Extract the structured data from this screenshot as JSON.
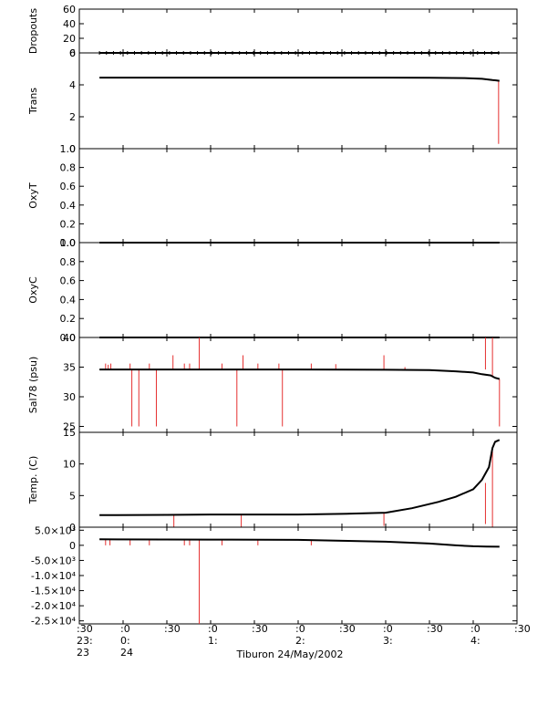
{
  "footer_label": "Tiburon 24/May/2002",
  "time_axis": {
    "min_hours": -0.5,
    "max_hours": 4.5,
    "tick_hours": [
      -0.5,
      0,
      0.5,
      1,
      1.5,
      2,
      2.5,
      3,
      3.5,
      4,
      4.5
    ],
    "row1": [
      ":30",
      ":0",
      ":30",
      ":0",
      ":30",
      ":0",
      ":30",
      ":0",
      ":30",
      ":0",
      ":30"
    ],
    "row2": [
      "23:",
      "0:",
      "",
      "1:",
      "",
      "2:",
      "",
      "3:",
      "",
      "4:",
      ""
    ],
    "row3": [
      "23",
      "24",
      "",
      "",
      "",
      "",
      "",
      "",
      "",
      "",
      ""
    ]
  },
  "chart_data": [
    {
      "type": "line",
      "ylabel": "Dropouts",
      "ylim": [
        0,
        60
      ],
      "yticks": [
        "0",
        "20",
        "40",
        "60"
      ],
      "tick_values": [
        0,
        20,
        40,
        60
      ],
      "series": [
        {
          "color": "#000000",
          "x_hours": [
            -0.27,
            4.3
          ],
          "y": [
            0,
            0
          ]
        }
      ],
      "spikes": []
    },
    {
      "type": "line",
      "ylabel": "Trans",
      "ylim": [
        0,
        6
      ],
      "yticks": [
        "0",
        "2",
        "4",
        "6"
      ],
      "tick_values": [
        0,
        2,
        4,
        6
      ],
      "series": [
        {
          "color": "#000000",
          "x_hours": [
            -0.27,
            0.5,
            1.5,
            2.5,
            3.0,
            3.5,
            3.9,
            4.1,
            4.22,
            4.26,
            4.3
          ],
          "y": [
            4.45,
            4.45,
            4.45,
            4.45,
            4.45,
            4.44,
            4.42,
            4.38,
            4.3,
            4.28,
            4.25
          ]
        }
      ],
      "spikes": [
        {
          "x": 4.29,
          "from": 4.2,
          "to": 0.3
        }
      ]
    },
    {
      "type": "line",
      "ylabel": "OxyT",
      "ylim": [
        0,
        1.0
      ],
      "yticks": [
        "0.0",
        "0.2",
        "0.4",
        "0.6",
        "0.8",
        "1.0"
      ],
      "tick_values": [
        0,
        0.2,
        0.4,
        0.6,
        0.8,
        1.0
      ],
      "series": [],
      "spikes": []
    },
    {
      "type": "line",
      "ylabel": "OxyC",
      "ylim": [
        0,
        1.0
      ],
      "yticks": [
        "0.0",
        "0.2",
        "0.4",
        "0.6",
        "0.8",
        "1.0"
      ],
      "tick_values": [
        0,
        0.2,
        0.4,
        0.6,
        0.8,
        1.0
      ],
      "series": [
        {
          "color": "#000000",
          "x_hours": [
            -0.27,
            4.3
          ],
          "y": [
            1.0,
            1.0
          ]
        },
        {
          "color": "#000000",
          "x_hours": [
            -0.27,
            4.3
          ],
          "y": [
            0.0,
            0.0
          ]
        }
      ],
      "spikes": []
    },
    {
      "type": "line",
      "ylabel": "Sal78 (psu)",
      "ylim": [
        24,
        40
      ],
      "yticks": [
        "25",
        "30",
        "35",
        "40"
      ],
      "tick_values": [
        25,
        30,
        35,
        40
      ],
      "series": [
        {
          "color": "#000000",
          "x_hours": [
            -0.27,
            1.0,
            2.0,
            3.0,
            3.5,
            3.8,
            4.0,
            4.1,
            4.2,
            4.25,
            4.3
          ],
          "y": [
            34.6,
            34.6,
            34.6,
            34.55,
            34.5,
            34.3,
            34.1,
            33.8,
            33.6,
            33.2,
            33.0
          ]
        }
      ],
      "spikes": [
        {
          "x": -0.2,
          "from": 34.6,
          "to": 35.6
        },
        {
          "x": -0.17,
          "from": 34.6,
          "to": 35.4
        },
        {
          "x": -0.14,
          "from": 34.6,
          "to": 35.6
        },
        {
          "x": 0.08,
          "from": 34.6,
          "to": 35.6
        },
        {
          "x": 0.1,
          "from": 34.6,
          "to": 25.0
        },
        {
          "x": 0.18,
          "from": 34.6,
          "to": 25.0
        },
        {
          "x": 0.3,
          "from": 34.6,
          "to": 35.6
        },
        {
          "x": 0.38,
          "from": 34.6,
          "to": 25.0
        },
        {
          "x": 0.57,
          "from": 34.6,
          "to": 37.0
        },
        {
          "x": 0.7,
          "from": 34.6,
          "to": 35.6
        },
        {
          "x": 0.76,
          "from": 34.6,
          "to": 35.6
        },
        {
          "x": 0.87,
          "from": 34.6,
          "to": 40.0
        },
        {
          "x": 1.13,
          "from": 34.6,
          "to": 35.6
        },
        {
          "x": 1.3,
          "from": 34.6,
          "to": 25.0
        },
        {
          "x": 1.37,
          "from": 34.6,
          "to": 37.0
        },
        {
          "x": 1.54,
          "from": 34.6,
          "to": 35.6
        },
        {
          "x": 1.78,
          "from": 34.6,
          "to": 35.6
        },
        {
          "x": 1.82,
          "from": 34.6,
          "to": 25.0
        },
        {
          "x": 2.15,
          "from": 34.6,
          "to": 35.6
        },
        {
          "x": 2.43,
          "from": 34.6,
          "to": 35.5
        },
        {
          "x": 2.98,
          "from": 34.6,
          "to": 37.0
        },
        {
          "x": 3.22,
          "from": 34.6,
          "to": 35.0
        },
        {
          "x": 4.14,
          "from": 34.6,
          "to": 40.0
        },
        {
          "x": 4.22,
          "from": 33.5,
          "to": 40.0
        },
        {
          "x": 4.3,
          "from": 33.0,
          "to": 25.0
        }
      ]
    },
    {
      "type": "line",
      "ylabel": "Temp. (C)",
      "ylim": [
        0,
        15
      ],
      "yticks": [
        "0",
        "5",
        "10",
        "15"
      ],
      "tick_values": [
        0,
        5,
        10,
        15
      ],
      "series": [
        {
          "color": "#000000",
          "x_hours": [
            -0.27,
            0.5,
            1.0,
            1.5,
            2.0,
            2.5,
            3.0,
            3.3,
            3.6,
            3.8,
            4.0,
            4.1,
            4.18,
            4.22,
            4.25,
            4.3
          ],
          "y": [
            1.9,
            1.95,
            2.0,
            2.0,
            2.0,
            2.1,
            2.3,
            3.0,
            4.0,
            4.8,
            6.0,
            7.5,
            9.5,
            12.5,
            13.5,
            13.8
          ]
        }
      ],
      "spikes": [
        {
          "x": 0.58,
          "from": 2.0,
          "to": 0.0
        },
        {
          "x": 1.35,
          "from": 2.0,
          "to": 0.0
        },
        {
          "x": 2.98,
          "from": 2.3,
          "to": 0.2
        },
        {
          "x": 4.14,
          "from": 7.0,
          "to": 0.5
        },
        {
          "x": 4.22,
          "from": 12.0,
          "to": 0.0
        }
      ]
    },
    {
      "type": "line",
      "ylabel": "",
      "ylim": [
        -26000,
        6000
      ],
      "yticks": [
        "5.0×10³",
        "0",
        "-5.0×10³",
        "-1.0×10⁴",
        "-1.5×10⁴",
        "-2.0×10⁴",
        "-2.5×10⁴"
      ],
      "tick_values": [
        5000,
        0,
        -5000,
        -10000,
        -15000,
        -20000,
        -25000
      ],
      "series": [
        {
          "color": "#000000",
          "x_hours": [
            -0.27,
            1.0,
            2.0,
            2.5,
            3.0,
            3.5,
            3.8,
            4.0,
            4.15,
            4.3
          ],
          "y": [
            2000,
            1900,
            1800,
            1500,
            1200,
            600,
            0,
            -300,
            -400,
            -450
          ]
        }
      ],
      "spikes": [
        {
          "x": -0.2,
          "from": 1900,
          "to": 0
        },
        {
          "x": -0.15,
          "from": 1900,
          "to": 0
        },
        {
          "x": 0.08,
          "from": 1900,
          "to": 0
        },
        {
          "x": 0.3,
          "from": 1900,
          "to": 0
        },
        {
          "x": 0.7,
          "from": 1900,
          "to": 0
        },
        {
          "x": 0.76,
          "from": 1900,
          "to": 0
        },
        {
          "x": 0.87,
          "from": 1900,
          "to": -26000
        },
        {
          "x": 1.13,
          "from": 1900,
          "to": 0
        },
        {
          "x": 1.54,
          "from": 1800,
          "to": 0
        },
        {
          "x": 2.15,
          "from": 1500,
          "to": 0
        }
      ]
    }
  ]
}
